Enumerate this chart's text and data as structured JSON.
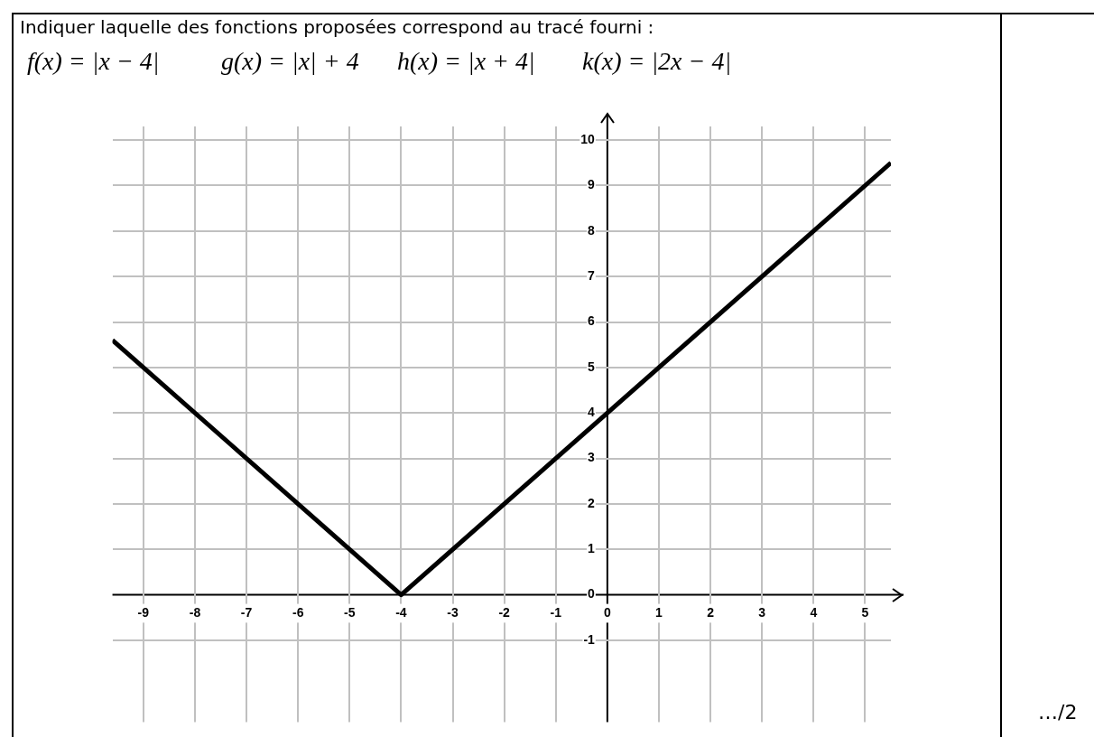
{
  "chart_data": {
    "type": "line",
    "title": "Indiquer laquelle des fonctions proposées correspond au tracé fourni :",
    "annotations": [
      "f(x) = |x − 4|",
      "g(x) = |x| + 4",
      "h(x) = |x + 4|",
      "k(x) = |2x − 4|",
      "…/2"
    ],
    "x": [
      -9.6,
      -4,
      5.5
    ],
    "series": [
      {
        "color": "#000000",
        "values": [
          5.6,
          0,
          9.5
        ]
      }
    ],
    "xlim": [
      -9.6,
      5.5
    ],
    "ylim": [
      -2.8,
      10.3
    ],
    "xticks": [
      -9,
      -8,
      -7,
      -6,
      -5,
      -4,
      -3,
      -2,
      -1,
      0,
      1,
      2,
      3,
      4,
      5
    ],
    "yticks": [
      -1,
      0,
      1,
      2,
      3,
      4,
      5,
      6,
      7,
      8,
      9,
      10
    ],
    "grid": true,
    "legend": false,
    "marker": "none",
    "line_style": "solid"
  }
}
